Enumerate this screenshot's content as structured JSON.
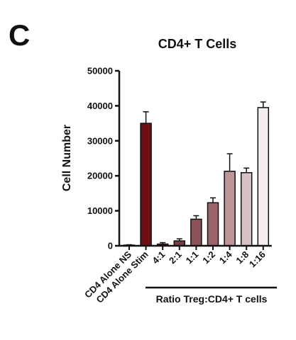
{
  "panel_letter": "C",
  "chart_data": {
    "type": "bar",
    "title": "CD4+ T Cells",
    "ylabel": "Cell Number",
    "xlabel": "Ratio Treg:CD4+ T cells",
    "ylim": [
      0,
      50000
    ],
    "yticks": [
      "0",
      "10000",
      "20000",
      "30000",
      "40000",
      "50000"
    ],
    "categories": [
      "CD4 Alone NS",
      "CD4 Alone Stim",
      "4:1",
      "2:1",
      "1:1",
      "1:2",
      "1:4",
      "1:8",
      "1:16"
    ],
    "values": [
      200,
      35000,
      500,
      1400,
      7600,
      12300,
      21300,
      20900,
      39500
    ],
    "errors": [
      100,
      3300,
      400,
      600,
      1000,
      1400,
      5000,
      1300,
      1600
    ],
    "colors": [
      "#5a0a0a",
      "#6e0f14",
      "#6b2a30",
      "#7b3d43",
      "#8c5459",
      "#9b6569",
      "#bf9598",
      "#d9c2c3",
      "#f3ecec"
    ],
    "grid": false
  }
}
